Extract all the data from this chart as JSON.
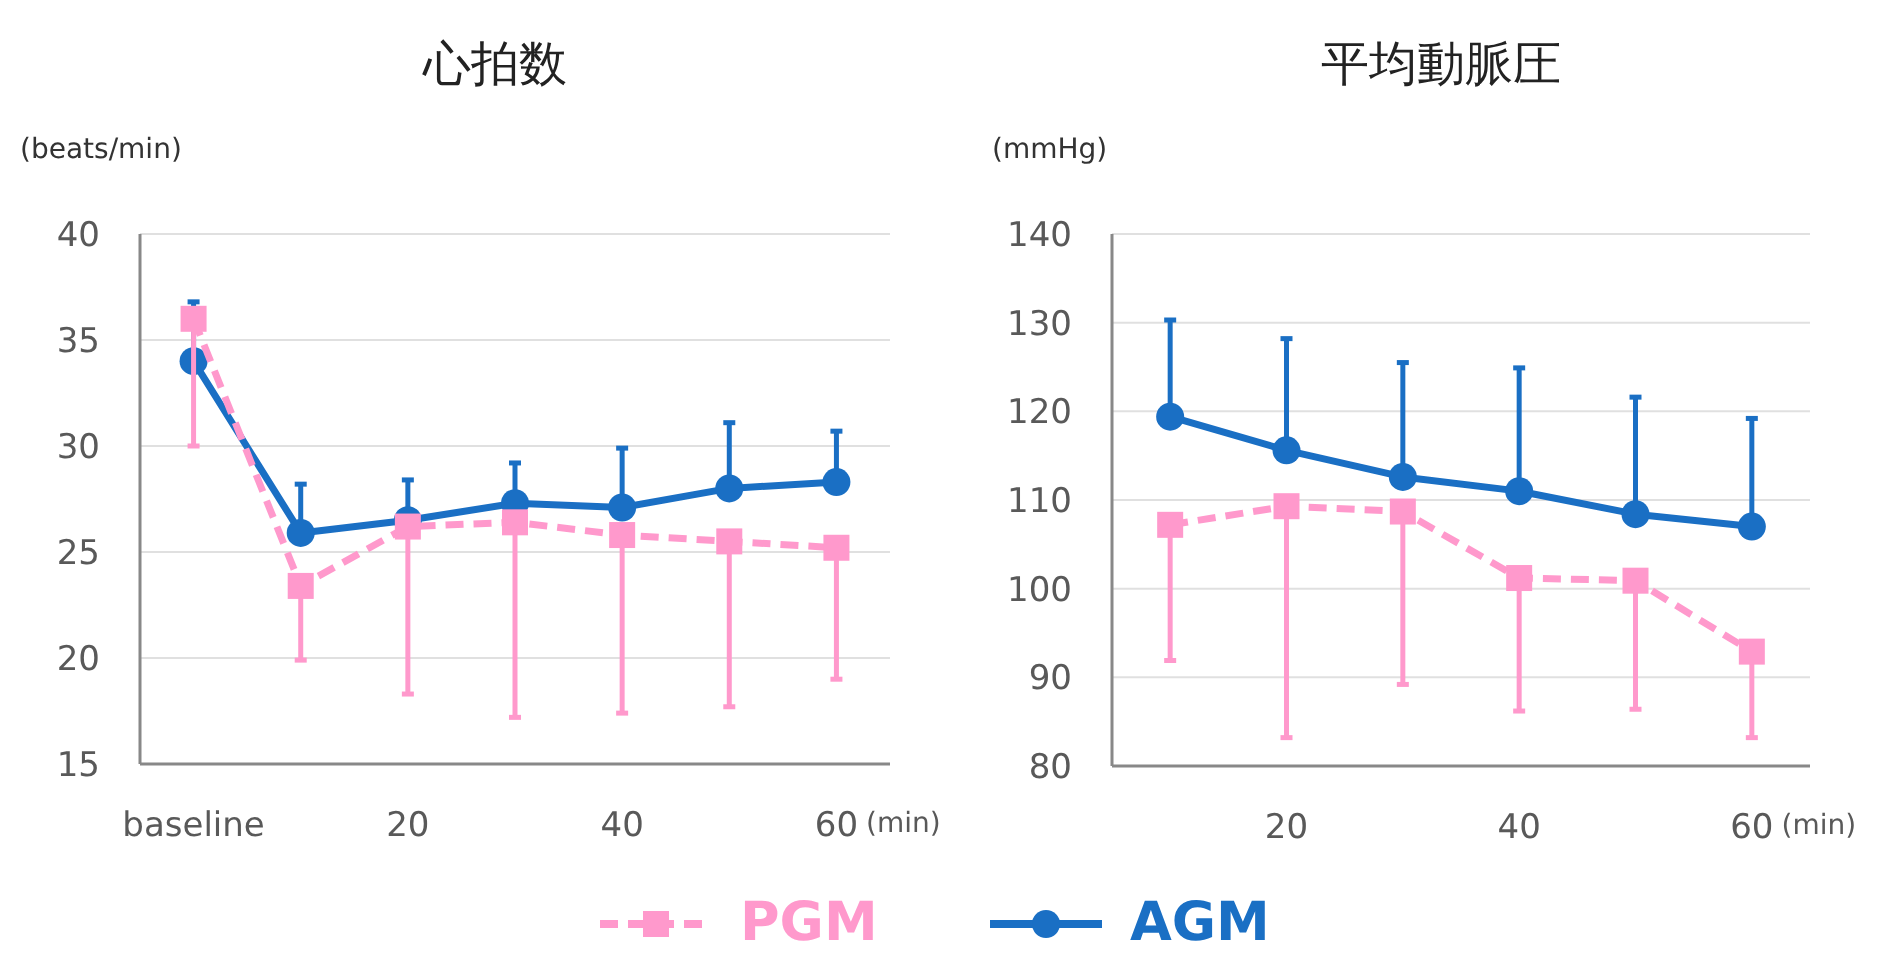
{
  "chart_data": [
    {
      "type": "line",
      "title": "心拍数",
      "ylabel": "(beats/min)",
      "xlabel": "(min)",
      "categories": [
        "baseline",
        null,
        "20",
        null,
        "40",
        null,
        "60"
      ],
      "ylim": [
        15,
        40
      ],
      "yticks": [
        15,
        20,
        25,
        30,
        35,
        40
      ],
      "grid": "y",
      "legend": "bottom",
      "series": [
        {
          "name": "PGM",
          "color": "#ff99cc",
          "marker": "square",
          "line_style": "dashed",
          "values": [
            36,
            23.4,
            26.2,
            26.4,
            25.8,
            25.5,
            25.2
          ],
          "errors": [
            [
              30,
              36
            ],
            [
              19.9,
              23.4
            ],
            [
              18.3,
              26.2
            ],
            [
              17.2,
              26.4
            ],
            [
              17.4,
              25.8
            ],
            [
              17.7,
              25.5
            ],
            [
              19.0,
              25.2
            ]
          ]
        },
        {
          "name": "AGM",
          "color": "#1a6fc4",
          "marker": "circle",
          "line_style": "solid",
          "values": [
            34,
            25.9,
            26.5,
            27.3,
            27.1,
            28.0,
            28.3
          ],
          "errors": [
            [
              34,
              36.8
            ],
            [
              25.9,
              28.2
            ],
            [
              26.5,
              28.4
            ],
            [
              27.3,
              29.2
            ],
            [
              27.1,
              29.9
            ],
            [
              28.0,
              31.1
            ],
            [
              28.3,
              30.7
            ]
          ]
        }
      ]
    },
    {
      "type": "line",
      "title": "平均動脈圧",
      "ylabel": "(mmHg)",
      "xlabel": "(min)",
      "categories": [
        null,
        "20",
        null,
        "40",
        null,
        "60"
      ],
      "ylim": [
        80,
        140
      ],
      "yticks": [
        80,
        90,
        100,
        110,
        120,
        130,
        140
      ],
      "grid": "y",
      "series": [
        {
          "color": "#ff99cc",
          "marker": "square",
          "line_style": "dashed",
          "values": [
            107.2,
            109.3,
            108.7,
            101.2,
            100.9,
            92.9
          ],
          "errors": [
            [
              91.9,
              107.2
            ],
            [
              83.2,
              109.3
            ],
            [
              89.2,
              108.7
            ],
            [
              86.2,
              101.2
            ],
            [
              86.4,
              100.9
            ],
            [
              83.2,
              92.9
            ]
          ]
        },
        {
          "color": "#1a6fc4",
          "marker": "circle",
          "line_style": "solid",
          "values": [
            119.4,
            115.6,
            112.6,
            111,
            108.4,
            107
          ],
          "errors": [
            [
              119.4,
              130.3
            ],
            [
              115.6,
              128.2
            ],
            [
              112.6,
              125.5
            ],
            [
              111,
              124.9
            ],
            [
              108.4,
              121.6
            ],
            [
              107,
              119.2
            ]
          ]
        }
      ]
    }
  ]
}
